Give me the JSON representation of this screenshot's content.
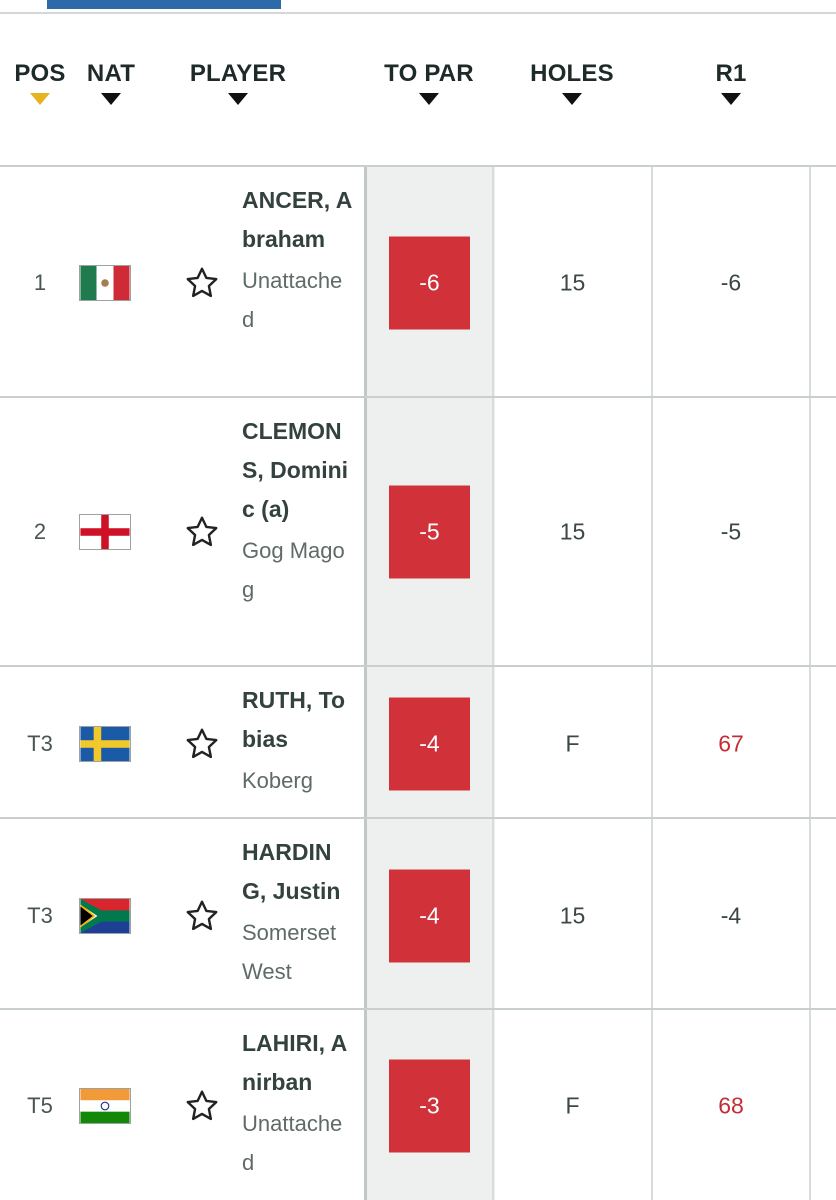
{
  "columns": {
    "pos": "POS",
    "nat": "NAT",
    "player": "PLAYER",
    "to_par": "TO PAR",
    "holes": "HOLES",
    "r1": "R1"
  },
  "sorted_column": "POS",
  "sort_arrow_color": "#e7b321",
  "score_box_color": "#d1323a",
  "under_par_round_color": "#c52d35",
  "rows": [
    {
      "pos": "1",
      "nat": "mexico-flag",
      "name": "ANCER, Abraham",
      "club": "Unattached",
      "to_par": "-6",
      "holes": "15",
      "r1": "-6",
      "r1_red": false
    },
    {
      "pos": "2",
      "nat": "england-flag",
      "name": "CLEMONS, Dominic (a)",
      "club": "Gog Magog",
      "to_par": "-5",
      "holes": "15",
      "r1": "-5",
      "r1_red": false
    },
    {
      "pos": "T3",
      "nat": "sweden-flag",
      "name": "RUTH, Tobias",
      "club": "Koberg",
      "to_par": "-4",
      "holes": "F",
      "r1": "67",
      "r1_red": true
    },
    {
      "pos": "T3",
      "nat": "south-africa-flag",
      "name": "HARDING, Justin",
      "club": "Somerset West",
      "to_par": "-4",
      "holes": "15",
      "r1": "-4",
      "r1_red": false
    },
    {
      "pos": "T5",
      "nat": "india-flag",
      "name": "LAHIRI, Anirban",
      "club": "Unattached",
      "to_par": "-3",
      "holes": "F",
      "r1": "68",
      "r1_red": true
    }
  ]
}
